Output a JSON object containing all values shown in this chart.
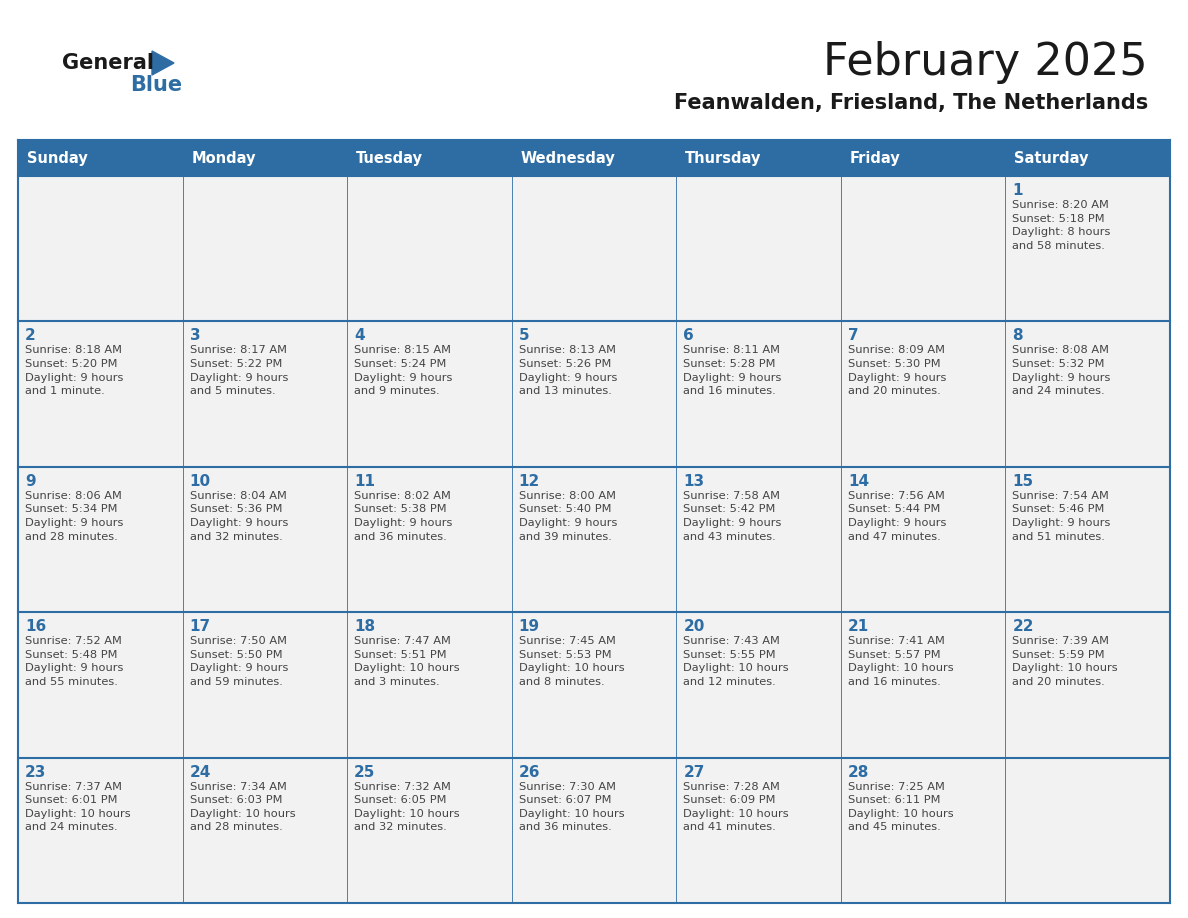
{
  "title": "February 2025",
  "subtitle": "Feanwalden, Friesland, The Netherlands",
  "days_of_week": [
    "Sunday",
    "Monday",
    "Tuesday",
    "Wednesday",
    "Thursday",
    "Friday",
    "Saturday"
  ],
  "header_bg": "#2E6DA4",
  "header_text": "#FFFFFF",
  "cell_bg": "#F2F2F2",
  "border_color": "#2E6DA4",
  "day_number_color": "#2E6DA4",
  "cell_text_color": "#444444",
  "title_color": "#1a1a1a",
  "subtitle_color": "#1a1a1a",
  "logo_general_color": "#1a1a1a",
  "logo_blue_color": "#2E6DA4",
  "weeks": [
    [
      {
        "day": null,
        "info": ""
      },
      {
        "day": null,
        "info": ""
      },
      {
        "day": null,
        "info": ""
      },
      {
        "day": null,
        "info": ""
      },
      {
        "day": null,
        "info": ""
      },
      {
        "day": null,
        "info": ""
      },
      {
        "day": 1,
        "info": "Sunrise: 8:20 AM\nSunset: 5:18 PM\nDaylight: 8 hours\nand 58 minutes."
      }
    ],
    [
      {
        "day": 2,
        "info": "Sunrise: 8:18 AM\nSunset: 5:20 PM\nDaylight: 9 hours\nand 1 minute."
      },
      {
        "day": 3,
        "info": "Sunrise: 8:17 AM\nSunset: 5:22 PM\nDaylight: 9 hours\nand 5 minutes."
      },
      {
        "day": 4,
        "info": "Sunrise: 8:15 AM\nSunset: 5:24 PM\nDaylight: 9 hours\nand 9 minutes."
      },
      {
        "day": 5,
        "info": "Sunrise: 8:13 AM\nSunset: 5:26 PM\nDaylight: 9 hours\nand 13 minutes."
      },
      {
        "day": 6,
        "info": "Sunrise: 8:11 AM\nSunset: 5:28 PM\nDaylight: 9 hours\nand 16 minutes."
      },
      {
        "day": 7,
        "info": "Sunrise: 8:09 AM\nSunset: 5:30 PM\nDaylight: 9 hours\nand 20 minutes."
      },
      {
        "day": 8,
        "info": "Sunrise: 8:08 AM\nSunset: 5:32 PM\nDaylight: 9 hours\nand 24 minutes."
      }
    ],
    [
      {
        "day": 9,
        "info": "Sunrise: 8:06 AM\nSunset: 5:34 PM\nDaylight: 9 hours\nand 28 minutes."
      },
      {
        "day": 10,
        "info": "Sunrise: 8:04 AM\nSunset: 5:36 PM\nDaylight: 9 hours\nand 32 minutes."
      },
      {
        "day": 11,
        "info": "Sunrise: 8:02 AM\nSunset: 5:38 PM\nDaylight: 9 hours\nand 36 minutes."
      },
      {
        "day": 12,
        "info": "Sunrise: 8:00 AM\nSunset: 5:40 PM\nDaylight: 9 hours\nand 39 minutes."
      },
      {
        "day": 13,
        "info": "Sunrise: 7:58 AM\nSunset: 5:42 PM\nDaylight: 9 hours\nand 43 minutes."
      },
      {
        "day": 14,
        "info": "Sunrise: 7:56 AM\nSunset: 5:44 PM\nDaylight: 9 hours\nand 47 minutes."
      },
      {
        "day": 15,
        "info": "Sunrise: 7:54 AM\nSunset: 5:46 PM\nDaylight: 9 hours\nand 51 minutes."
      }
    ],
    [
      {
        "day": 16,
        "info": "Sunrise: 7:52 AM\nSunset: 5:48 PM\nDaylight: 9 hours\nand 55 minutes."
      },
      {
        "day": 17,
        "info": "Sunrise: 7:50 AM\nSunset: 5:50 PM\nDaylight: 9 hours\nand 59 minutes."
      },
      {
        "day": 18,
        "info": "Sunrise: 7:47 AM\nSunset: 5:51 PM\nDaylight: 10 hours\nand 3 minutes."
      },
      {
        "day": 19,
        "info": "Sunrise: 7:45 AM\nSunset: 5:53 PM\nDaylight: 10 hours\nand 8 minutes."
      },
      {
        "day": 20,
        "info": "Sunrise: 7:43 AM\nSunset: 5:55 PM\nDaylight: 10 hours\nand 12 minutes."
      },
      {
        "day": 21,
        "info": "Sunrise: 7:41 AM\nSunset: 5:57 PM\nDaylight: 10 hours\nand 16 minutes."
      },
      {
        "day": 22,
        "info": "Sunrise: 7:39 AM\nSunset: 5:59 PM\nDaylight: 10 hours\nand 20 minutes."
      }
    ],
    [
      {
        "day": 23,
        "info": "Sunrise: 7:37 AM\nSunset: 6:01 PM\nDaylight: 10 hours\nand 24 minutes."
      },
      {
        "day": 24,
        "info": "Sunrise: 7:34 AM\nSunset: 6:03 PM\nDaylight: 10 hours\nand 28 minutes."
      },
      {
        "day": 25,
        "info": "Sunrise: 7:32 AM\nSunset: 6:05 PM\nDaylight: 10 hours\nand 32 minutes."
      },
      {
        "day": 26,
        "info": "Sunrise: 7:30 AM\nSunset: 6:07 PM\nDaylight: 10 hours\nand 36 minutes."
      },
      {
        "day": 27,
        "info": "Sunrise: 7:28 AM\nSunset: 6:09 PM\nDaylight: 10 hours\nand 41 minutes."
      },
      {
        "day": 28,
        "info": "Sunrise: 7:25 AM\nSunset: 6:11 PM\nDaylight: 10 hours\nand 45 minutes."
      },
      {
        "day": null,
        "info": ""
      }
    ]
  ]
}
